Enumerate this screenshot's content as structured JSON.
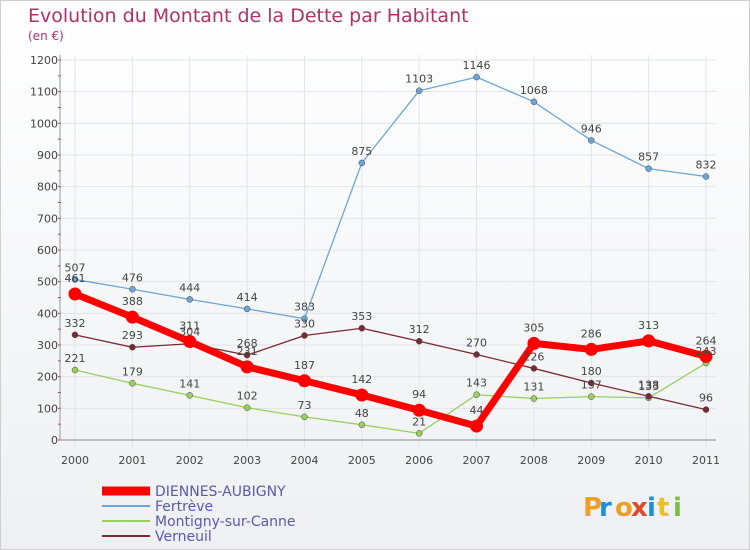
{
  "chart_data": {
    "type": "line",
    "title": "Evolution du Montant de la Dette par Habitant",
    "subtitle": "(en €)",
    "x": [
      "2000",
      "2001",
      "2002",
      "2003",
      "2004",
      "2005",
      "2006",
      "2007",
      "2008",
      "2009",
      "2010",
      "2011"
    ],
    "ylim": [
      0,
      1200
    ],
    "yticks": [
      0,
      100,
      200,
      300,
      400,
      500,
      600,
      700,
      800,
      900,
      1000,
      1100,
      1200
    ],
    "grid": true,
    "legend_position": "bottom-left",
    "series": [
      {
        "name": "DIENNES-AUBIGNY",
        "color": "#ff0000",
        "values": [
          461,
          388,
          311,
          231,
          187,
          142,
          94,
          44,
          305,
          286,
          313,
          264
        ]
      },
      {
        "name": "Fertrève",
        "color": "#6ca6d6",
        "values": [
          507,
          476,
          444,
          414,
          383,
          875,
          1103,
          1146,
          1068,
          946,
          857,
          832
        ]
      },
      {
        "name": "Montigny-sur-Canne",
        "color": "#99d060",
        "values": [
          221,
          179,
          141,
          102,
          73,
          48,
          21,
          143,
          131,
          137,
          133,
          243
        ]
      },
      {
        "name": "Verneuil",
        "color": "#7a2a30",
        "values": [
          332,
          293,
          304,
          268,
          330,
          353,
          312,
          270,
          226,
          180,
          138,
          96
        ]
      }
    ]
  },
  "logo": {
    "text": "Proxiti"
  }
}
